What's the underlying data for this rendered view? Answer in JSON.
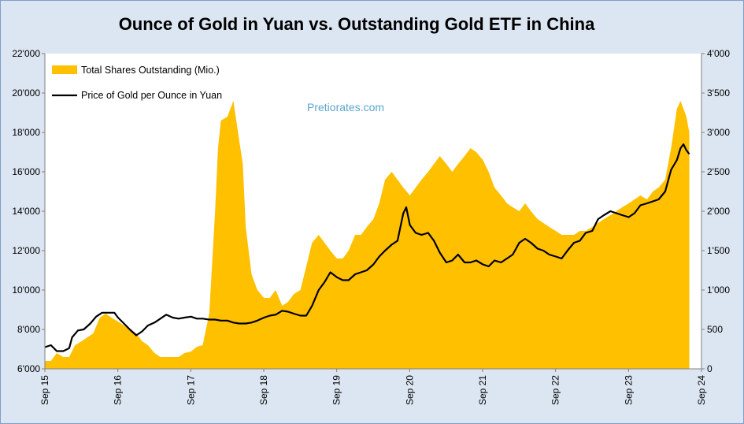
{
  "title": "Ounce of Gold in Yuan vs. Outstanding Gold ETF in China",
  "watermark": "Pretiorates.com",
  "colors": {
    "area": "#ffc000",
    "line": "#000000",
    "plot_bg": "#ffffff",
    "background": "#dce6f2",
    "grid": "#808080"
  },
  "chart_data": {
    "type": "area+line",
    "title": "Ounce of Gold in Yuan vs. Outstanding Gold ETF in China",
    "x_ticks": [
      "Sep 15",
      "Sep 16",
      "Sep 17",
      "Sep 18",
      "Sep 19",
      "Sep 20",
      "Sep 21",
      "Sep 22",
      "Sep 23",
      "Sep 24"
    ],
    "x_range": [
      2015.667,
      2024.667
    ],
    "y_left": {
      "ticks": [
        "6'000",
        "8'000",
        "10'000",
        "12'000",
        "14'000",
        "16'000",
        "18'000",
        "20'000",
        "22'000"
      ],
      "min": 6000,
      "max": 22000
    },
    "y_right": {
      "ticks": [
        "0",
        "500",
        "1'000",
        "1'500",
        "2'000",
        "2'500",
        "3'000",
        "3'500",
        "4'000"
      ],
      "min": 0,
      "max": 4000
    },
    "grid": false,
    "legend_position": "top-left",
    "series": [
      {
        "name": "Price of Gold per Ounce in Yuan",
        "type": "line",
        "axis": "left",
        "points": [
          [
            2015.667,
            7100
          ],
          [
            2015.75,
            7200
          ],
          [
            2015.83,
            6900
          ],
          [
            2015.92,
            6900
          ],
          [
            2016.0,
            7050
          ],
          [
            2016.04,
            7600
          ],
          [
            2016.12,
            7950
          ],
          [
            2016.2,
            8000
          ],
          [
            2016.29,
            8300
          ],
          [
            2016.37,
            8650
          ],
          [
            2016.45,
            8850
          ],
          [
            2016.54,
            8850
          ],
          [
            2016.62,
            8850
          ],
          [
            2016.67,
            8600
          ],
          [
            2016.75,
            8300
          ],
          [
            2016.83,
            8000
          ],
          [
            2016.92,
            7700
          ],
          [
            2017.0,
            7900
          ],
          [
            2017.08,
            8200
          ],
          [
            2017.17,
            8350
          ],
          [
            2017.25,
            8550
          ],
          [
            2017.33,
            8750
          ],
          [
            2017.42,
            8600
          ],
          [
            2017.5,
            8550
          ],
          [
            2017.58,
            8600
          ],
          [
            2017.67,
            8650
          ],
          [
            2017.75,
            8550
          ],
          [
            2017.83,
            8550
          ],
          [
            2017.92,
            8500
          ],
          [
            2018.0,
            8500
          ],
          [
            2018.08,
            8450
          ],
          [
            2018.17,
            8450
          ],
          [
            2018.25,
            8350
          ],
          [
            2018.33,
            8300
          ],
          [
            2018.42,
            8300
          ],
          [
            2018.5,
            8350
          ],
          [
            2018.58,
            8450
          ],
          [
            2018.67,
            8600
          ],
          [
            2018.75,
            8700
          ],
          [
            2018.83,
            8750
          ],
          [
            2018.92,
            8950
          ],
          [
            2019.0,
            8900
          ],
          [
            2019.08,
            8800
          ],
          [
            2019.17,
            8700
          ],
          [
            2019.25,
            8700
          ],
          [
            2019.33,
            9200
          ],
          [
            2019.42,
            10000
          ],
          [
            2019.5,
            10400
          ],
          [
            2019.58,
            10900
          ],
          [
            2019.67,
            10650
          ],
          [
            2019.75,
            10500
          ],
          [
            2019.83,
            10500
          ],
          [
            2019.92,
            10800
          ],
          [
            2020.0,
            10900
          ],
          [
            2020.08,
            11000
          ],
          [
            2020.17,
            11300
          ],
          [
            2020.25,
            11700
          ],
          [
            2020.33,
            12000
          ],
          [
            2020.42,
            12300
          ],
          [
            2020.5,
            12500
          ],
          [
            2020.58,
            13900
          ],
          [
            2020.62,
            14200
          ],
          [
            2020.67,
            13300
          ],
          [
            2020.75,
            12900
          ],
          [
            2020.83,
            12800
          ],
          [
            2020.92,
            12900
          ],
          [
            2021.0,
            12500
          ],
          [
            2021.08,
            11900
          ],
          [
            2021.17,
            11400
          ],
          [
            2021.25,
            11500
          ],
          [
            2021.33,
            11800
          ],
          [
            2021.42,
            11400
          ],
          [
            2021.5,
            11400
          ],
          [
            2021.58,
            11500
          ],
          [
            2021.67,
            11300
          ],
          [
            2021.75,
            11200
          ],
          [
            2021.83,
            11500
          ],
          [
            2021.92,
            11400
          ],
          [
            2022.0,
            11600
          ],
          [
            2022.08,
            11800
          ],
          [
            2022.17,
            12400
          ],
          [
            2022.25,
            12600
          ],
          [
            2022.33,
            12400
          ],
          [
            2022.42,
            12100
          ],
          [
            2022.5,
            12000
          ],
          [
            2022.58,
            11800
          ],
          [
            2022.67,
            11700
          ],
          [
            2022.75,
            11600
          ],
          [
            2022.83,
            12000
          ],
          [
            2022.92,
            12400
          ],
          [
            2023.0,
            12500
          ],
          [
            2023.08,
            12900
          ],
          [
            2023.17,
            13000
          ],
          [
            2023.25,
            13600
          ],
          [
            2023.33,
            13800
          ],
          [
            2023.42,
            14000
          ],
          [
            2023.5,
            13900
          ],
          [
            2023.58,
            13800
          ],
          [
            2023.67,
            13700
          ],
          [
            2023.75,
            13900
          ],
          [
            2023.83,
            14300
          ],
          [
            2023.92,
            14400
          ],
          [
            2024.0,
            14500
          ],
          [
            2024.08,
            14600
          ],
          [
            2024.17,
            15000
          ],
          [
            2024.25,
            16100
          ],
          [
            2024.33,
            16600
          ],
          [
            2024.38,
            17200
          ],
          [
            2024.42,
            17400
          ],
          [
            2024.46,
            17100
          ],
          [
            2024.5,
            16900
          ]
        ]
      },
      {
        "name": "Total Shares Outstanding (Mio.)",
        "type": "area",
        "axis": "right",
        "points": [
          [
            2015.667,
            100
          ],
          [
            2015.75,
            100
          ],
          [
            2015.83,
            200
          ],
          [
            2015.92,
            150
          ],
          [
            2016.0,
            150
          ],
          [
            2016.08,
            300
          ],
          [
            2016.17,
            350
          ],
          [
            2016.25,
            400
          ],
          [
            2016.33,
            450
          ],
          [
            2016.42,
            650
          ],
          [
            2016.5,
            700
          ],
          [
            2016.58,
            650
          ],
          [
            2016.67,
            600
          ],
          [
            2016.75,
            550
          ],
          [
            2016.83,
            500
          ],
          [
            2016.92,
            450
          ],
          [
            2017.0,
            350
          ],
          [
            2017.08,
            300
          ],
          [
            2017.17,
            200
          ],
          [
            2017.25,
            150
          ],
          [
            2017.33,
            150
          ],
          [
            2017.42,
            150
          ],
          [
            2017.5,
            150
          ],
          [
            2017.58,
            200
          ],
          [
            2017.67,
            220
          ],
          [
            2017.75,
            280
          ],
          [
            2017.83,
            300
          ],
          [
            2017.92,
            700
          ],
          [
            2018.0,
            2000
          ],
          [
            2018.04,
            2800
          ],
          [
            2018.08,
            3150
          ],
          [
            2018.17,
            3200
          ],
          [
            2018.25,
            3400
          ],
          [
            2018.33,
            2900
          ],
          [
            2018.38,
            2600
          ],
          [
            2018.42,
            1800
          ],
          [
            2018.5,
            1200
          ],
          [
            2018.58,
            1000
          ],
          [
            2018.67,
            900
          ],
          [
            2018.75,
            900
          ],
          [
            2018.83,
            1000
          ],
          [
            2018.92,
            800
          ],
          [
            2019.0,
            850
          ],
          [
            2019.08,
            950
          ],
          [
            2019.17,
            1000
          ],
          [
            2019.25,
            1300
          ],
          [
            2019.33,
            1600
          ],
          [
            2019.42,
            1700
          ],
          [
            2019.5,
            1600
          ],
          [
            2019.58,
            1500
          ],
          [
            2019.67,
            1400
          ],
          [
            2019.75,
            1400
          ],
          [
            2019.83,
            1500
          ],
          [
            2019.92,
            1700
          ],
          [
            2020.0,
            1700
          ],
          [
            2020.08,
            1800
          ],
          [
            2020.17,
            1900
          ],
          [
            2020.25,
            2100
          ],
          [
            2020.33,
            2400
          ],
          [
            2020.42,
            2500
          ],
          [
            2020.5,
            2400
          ],
          [
            2020.58,
            2300
          ],
          [
            2020.67,
            2200
          ],
          [
            2020.75,
            2300
          ],
          [
            2020.83,
            2400
          ],
          [
            2020.92,
            2500
          ],
          [
            2021.0,
            2600
          ],
          [
            2021.08,
            2700
          ],
          [
            2021.17,
            2600
          ],
          [
            2021.25,
            2500
          ],
          [
            2021.33,
            2600
          ],
          [
            2021.42,
            2700
          ],
          [
            2021.5,
            2800
          ],
          [
            2021.58,
            2750
          ],
          [
            2021.67,
            2650
          ],
          [
            2021.75,
            2500
          ],
          [
            2021.83,
            2300
          ],
          [
            2021.92,
            2200
          ],
          [
            2022.0,
            2100
          ],
          [
            2022.08,
            2050
          ],
          [
            2022.17,
            2000
          ],
          [
            2022.25,
            2100
          ],
          [
            2022.33,
            2000
          ],
          [
            2022.42,
            1900
          ],
          [
            2022.5,
            1850
          ],
          [
            2022.58,
            1800
          ],
          [
            2022.67,
            1750
          ],
          [
            2022.75,
            1700
          ],
          [
            2022.83,
            1700
          ],
          [
            2022.92,
            1700
          ],
          [
            2023.0,
            1750
          ],
          [
            2023.08,
            1750
          ],
          [
            2023.17,
            1800
          ],
          [
            2023.25,
            1850
          ],
          [
            2023.33,
            1900
          ],
          [
            2023.42,
            1950
          ],
          [
            2023.5,
            2000
          ],
          [
            2023.58,
            2050
          ],
          [
            2023.67,
            2100
          ],
          [
            2023.75,
            2150
          ],
          [
            2023.83,
            2200
          ],
          [
            2023.92,
            2150
          ],
          [
            2024.0,
            2250
          ],
          [
            2024.08,
            2300
          ],
          [
            2024.17,
            2400
          ],
          [
            2024.25,
            2800
          ],
          [
            2024.33,
            3300
          ],
          [
            2024.38,
            3400
          ],
          [
            2024.42,
            3300
          ],
          [
            2024.46,
            3200
          ],
          [
            2024.5,
            3000
          ]
        ]
      }
    ]
  },
  "legend": [
    {
      "label": "Total Shares Outstanding (Mio.)",
      "kind": "area"
    },
    {
      "label": "Price of Gold per Ounce in Yuan",
      "kind": "line"
    }
  ]
}
